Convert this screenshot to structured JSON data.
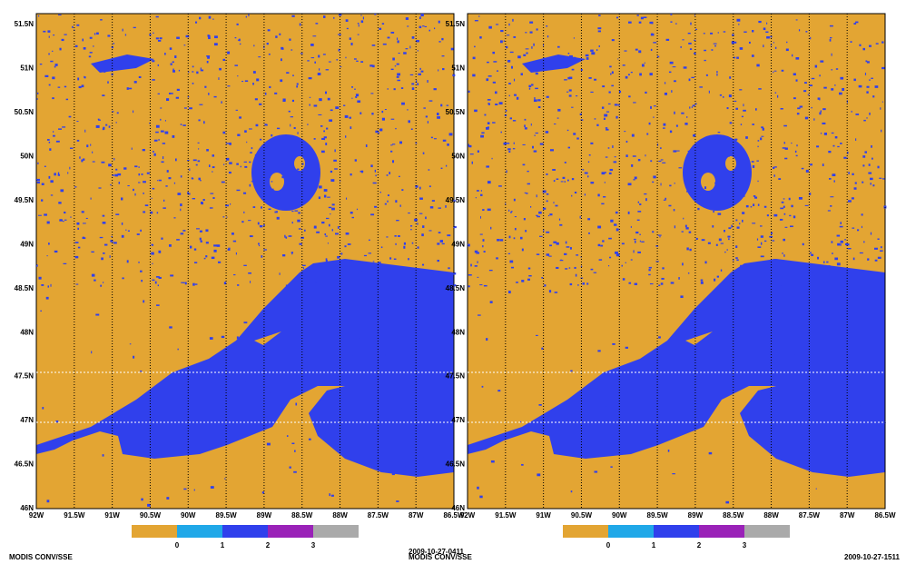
{
  "panels": [
    {
      "y_labels": [
        "51.5N",
        "51N",
        "50.5N",
        "50N",
        "49.5N",
        "49N",
        "48.5N",
        "48N",
        "47.5N",
        "47N",
        "46.5N",
        "46N"
      ],
      "x_labels": [
        "92W",
        "91.5W",
        "91W",
        "90.5W",
        "90W",
        "89.5W",
        "89W",
        "88.5W",
        "88W",
        "87.5W",
        "87W",
        "86.5W"
      ],
      "colorbar_labels": [
        "0",
        "1",
        "2",
        "3"
      ],
      "footer_left": "MODIS CONV/SSE",
      "footer_right": "2009-10-27-0411"
    },
    {
      "y_labels": [
        "51.5N",
        "51N",
        "50.5N",
        "50N",
        "49.5N",
        "49N",
        "48.5N",
        "48N",
        "47.5N",
        "47N",
        "46.5N",
        "46N"
      ],
      "x_labels": [
        "92W",
        "91.5W",
        "91W",
        "90.5W",
        "90W",
        "89.5W",
        "89W",
        "88.5W",
        "88W",
        "87.5W",
        "87W",
        "86.5W"
      ],
      "colorbar_labels": [
        "0",
        "1",
        "2",
        "3"
      ],
      "footer_left": "MODIS CONV/SSE",
      "footer_right": "2009-10-27-1511"
    }
  ]
}
